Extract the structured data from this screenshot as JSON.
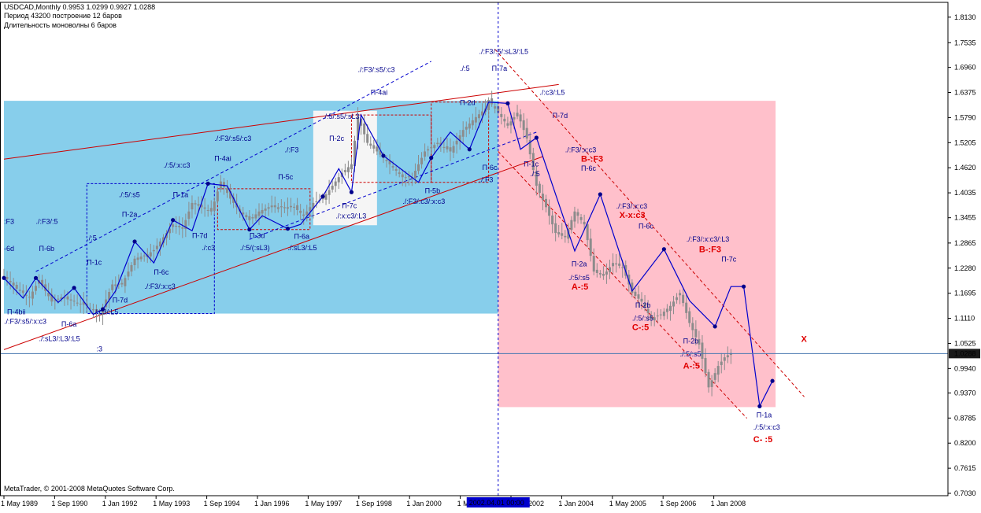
{
  "header": {
    "line1": "USDCAD,Monthly  0.9953 1.0299 0.9927 1.0288",
    "line2": "Период  43200  построение      12 баров",
    "line3": "Длительность моноволны  6  баров"
  },
  "footer": {
    "copyright": "MetaTrader, © 2001-2008 MetaQuotes Software Corp."
  },
  "colors": {
    "bg": "#ffffff",
    "zone_blue": "#87ceeb",
    "zone_pink": "#ffc0cb",
    "zone_white": "#f5f5f5",
    "candle": "#8c8c8c",
    "zigzag": "#0000cd",
    "channel_red": "#cc0000",
    "channel_blue": "#0000cd",
    "label": "#00008b",
    "label_red": "#e00000"
  },
  "chart_data": {
    "type": "candlestick",
    "symbol": "USDCAD",
    "timeframe": "Monthly",
    "ylim": [
      0.703,
      1.82
    ],
    "y_ticks": [
      "1.8130",
      "1.7535",
      "1.6960",
      "1.6375",
      "1.5790",
      "1.5205",
      "1.4620",
      "1.4035",
      "1.3455",
      "1.2865",
      "1.2280",
      "1.1695",
      "1.1110",
      "1.0525",
      "0.9940",
      "0.9370",
      "0.8785",
      "0.8200",
      "0.7615",
      "0.7030"
    ],
    "x_ticks": [
      "1 May 1989",
      "1 Sep 1990",
      "1 Jan 1992",
      "1 May 1993",
      "1 Sep 1994",
      "1 Jan 1996",
      "1 May 1997",
      "1 Sep 1998",
      "1 Jan 2000",
      "1 May 2001",
      "1 Sep 2002",
      "1 Jan 2004",
      "1 May 2005",
      "1 Sep 2006",
      "1 Jan 2008"
    ],
    "current_price": "1.0288",
    "cursor_date": "2002.04.01 00:00",
    "close_path": [
      [
        "1989-05",
        1.21
      ],
      [
        "1989-09",
        1.18
      ],
      [
        "1990-01",
        1.16
      ],
      [
        "1990-04",
        1.2
      ],
      [
        "1990-08",
        1.15
      ],
      [
        "1990-11",
        1.16
      ],
      [
        "1991-03",
        1.15
      ],
      [
        "1991-07",
        1.14
      ],
      [
        "1991-11",
        1.12
      ],
      [
        "1992-03",
        1.19
      ],
      [
        "1992-06",
        1.19
      ],
      [
        "1992-10",
        1.25
      ],
      [
        "1993-02",
        1.26
      ],
      [
        "1993-04",
        1.27
      ],
      [
        "1993-07",
        1.3
      ],
      [
        "1993-10",
        1.33
      ],
      [
        "1994-01",
        1.32
      ],
      [
        "1994-04",
        1.38
      ],
      [
        "1994-07",
        1.37
      ],
      [
        "1994-10",
        1.36
      ],
      [
        "1995-01",
        1.43
      ],
      [
        "1995-04",
        1.39
      ],
      [
        "1995-07",
        1.36
      ],
      [
        "1995-10",
        1.34
      ],
      [
        "1996-01",
        1.36
      ],
      [
        "1996-04",
        1.37
      ],
      [
        "1996-08",
        1.37
      ],
      [
        "1996-12",
        1.37
      ],
      [
        "1997-03",
        1.35
      ],
      [
        "1997-06",
        1.38
      ],
      [
        "1997-09",
        1.39
      ],
      [
        "1997-12",
        1.42
      ],
      [
        "1998-03",
        1.45
      ],
      [
        "1998-06",
        1.47
      ],
      [
        "1998-08",
        1.58
      ],
      [
        "1998-11",
        1.52
      ],
      [
        "1999-02",
        1.5
      ],
      [
        "1999-06",
        1.47
      ],
      [
        "1999-10",
        1.44
      ],
      [
        "2000-01",
        1.44
      ],
      [
        "2000-05",
        1.5
      ],
      [
        "2000-09",
        1.52
      ],
      [
        "2001-01",
        1.5
      ],
      [
        "2001-05",
        1.55
      ],
      [
        "2001-09",
        1.58
      ],
      [
        "2001-12",
        1.6
      ],
      [
        "2002-01",
        1.62
      ],
      [
        "2002-04",
        1.59
      ],
      [
        "2002-07",
        1.56
      ],
      [
        "2002-10",
        1.59
      ],
      [
        "2003-01",
        1.53
      ],
      [
        "2003-04",
        1.42
      ],
      [
        "2003-07",
        1.37
      ],
      [
        "2003-10",
        1.31
      ],
      [
        "2004-01",
        1.3
      ],
      [
        "2004-04",
        1.36
      ],
      [
        "2004-07",
        1.33
      ],
      [
        "2004-10",
        1.22
      ],
      [
        "2005-01",
        1.21
      ],
      [
        "2005-04",
        1.24
      ],
      [
        "2005-07",
        1.23
      ],
      [
        "2005-10",
        1.17
      ],
      [
        "2006-01",
        1.15
      ],
      [
        "2006-04",
        1.11
      ],
      [
        "2006-07",
        1.12
      ],
      [
        "2006-10",
        1.14
      ],
      [
        "2007-01",
        1.17
      ],
      [
        "2007-04",
        1.1
      ],
      [
        "2007-07",
        1.05
      ],
      [
        "2007-10",
        0.95
      ],
      [
        "2008-01",
        1.0
      ],
      [
        "2008-03",
        1.02
      ],
      [
        "2008-05",
        1.03
      ]
    ],
    "zigzag": [
      [
        "1989-05",
        1.205
      ],
      [
        "1989-11",
        1.158
      ],
      [
        "1990-03",
        1.205
      ],
      [
        "1990-10",
        1.148
      ],
      [
        "1991-03",
        1.182
      ],
      [
        "1991-09",
        1.12
      ],
      [
        "1991-12",
        1.132
      ],
      [
        "1992-04",
        1.175
      ],
      [
        "1992-10",
        1.29
      ],
      [
        "1993-04",
        1.24
      ],
      [
        "1993-10",
        1.34
      ],
      [
        "1994-04",
        1.315
      ],
      [
        "1994-09",
        1.425
      ],
      [
        "1995-03",
        1.42
      ],
      [
        "1995-10",
        1.318
      ],
      [
        "1996-02",
        1.35
      ],
      [
        "1996-10",
        1.32
      ],
      [
        "1997-02",
        1.33
      ],
      [
        "1997-09",
        1.395
      ],
      [
        "1998-02",
        1.46
      ],
      [
        "1998-06",
        1.405
      ],
      [
        "1998-09",
        1.585
      ],
      [
        "1999-04",
        1.49
      ],
      [
        "2000-03",
        1.428
      ],
      [
        "2000-07",
        1.485
      ],
      [
        "2001-01",
        1.545
      ],
      [
        "2001-07",
        1.505
      ],
      [
        "2002-01",
        1.615
      ],
      [
        "2002-07",
        1.612
      ],
      [
        "2002-11",
        1.505
      ],
      [
        "2003-04",
        1.532
      ],
      [
        "2004-04",
        1.268
      ],
      [
        "2004-12",
        1.4
      ],
      [
        "2005-10",
        1.175
      ],
      [
        "2006-08",
        1.272
      ],
      [
        "2007-04",
        1.152
      ],
      [
        "2007-12",
        1.092
      ],
      [
        "2008-05",
        1.185
      ],
      [
        "2008-09",
        1.185
      ],
      [
        "2009-02",
        0.906
      ],
      [
        "2009-06",
        0.965
      ]
    ],
    "zones": [
      {
        "name": "blue-zone",
        "x0": "1989-05",
        "x1": "2002-04",
        "y0": 1.122,
        "y1": 1.618
      },
      {
        "name": "white-zone",
        "x0": "1997-06",
        "x1": "1999-02",
        "y0": 1.328,
        "y1": 1.595
      },
      {
        "name": "pink-zone",
        "x0": "2002-04",
        "x1": "2009-07",
        "y0": 0.904,
        "y1": 1.618
      }
    ],
    "dashed_boxes": [
      {
        "x0": "1991-07",
        "x1": "1994-11",
        "y0": 1.122,
        "y1": 1.425
      },
      {
        "x0": "1994-12",
        "x1": "1997-05",
        "y0": 1.318,
        "y1": 1.413
      },
      {
        "x0": "1998-06",
        "x1": "2000-07",
        "y0": 1.428,
        "y1": 1.585
      },
      {
        "x0": "2000-07",
        "x1": "2002-01",
        "y0": 1.428,
        "y1": 1.615
      }
    ],
    "lines": [
      {
        "name": "red-channel-top",
        "style": "solid",
        "color": "channel_red",
        "p0": [
          "1989-05",
          1.482
        ],
        "p1": [
          "2003-11",
          1.656
        ]
      },
      {
        "name": "red-channel-bottom",
        "style": "solid",
        "color": "channel_red",
        "p0": [
          "1989-05",
          1.038
        ],
        "p1": [
          "2003-06",
          1.488
        ]
      },
      {
        "name": "blue-channel-top",
        "style": "dashed",
        "color": "channel_blue",
        "p0": [
          "1990-03",
          1.22
        ],
        "p1": [
          "2000-07",
          1.71
        ]
      },
      {
        "name": "blue-channel-bottom",
        "style": "dashed",
        "color": "channel_blue",
        "p0": [
          "1995-10",
          1.295
        ],
        "p1": [
          "2003-04",
          1.545
        ]
      },
      {
        "name": "red-down-channel-top",
        "style": "dashed",
        "color": "channel_red",
        "p0": [
          "2002-03",
          1.738
        ],
        "p1": [
          "2010-04",
          0.928
        ]
      },
      {
        "name": "red-down-channel-bottom",
        "style": "dashed",
        "color": "channel_red",
        "p0": [
          "2002-04",
          1.5
        ],
        "p1": [
          "2008-10",
          0.878
        ]
      }
    ],
    "labels": [
      {
        "text": ":F3",
        "at": [
          "1989-05",
          1.331
        ],
        "style": "blue"
      },
      {
        "text": "./:F3/:5",
        "at": [
          "1990-03",
          1.331
        ],
        "style": "blue"
      },
      {
        "text": "-6d",
        "at": [
          "1989-05",
          1.268
        ],
        "style": "blue"
      },
      {
        "text": "П-6b",
        "at": [
          "1990-04",
          1.268
        ],
        "style": "blue"
      },
      {
        "text": "П-4bii",
        "at": [
          "1989-06",
          1.12
        ],
        "style": "blue"
      },
      {
        "text": "./:F3/:s5/:x:c3",
        "at": [
          "1989-05",
          1.098
        ],
        "style": "blue"
      },
      {
        "text": "П-6a",
        "at": [
          "1990-11",
          1.092
        ],
        "style": "blue"
      },
      {
        "text": "./:sL3/:L3/:L5",
        "at": [
          "1990-04",
          1.058
        ],
        "style": "blue"
      },
      {
        "text": ":3",
        "at": [
          "1991-10",
          1.034
        ],
        "style": "red-small"
      },
      {
        "text": "./:5",
        "at": [
          "1991-07",
          1.293
        ],
        "style": "blue"
      },
      {
        "text": "П-1c",
        "at": [
          "1991-07",
          1.236
        ],
        "style": "blue"
      },
      {
        "text": "П-7d",
        "at": [
          "1992-03",
          1.148
        ],
        "style": "blue"
      },
      {
        "text": "./:c3/:L5",
        "at": [
          "1991-09",
          1.12
        ],
        "style": "blue"
      },
      {
        "text": "./:5/:s5",
        "at": [
          "1992-05",
          1.394
        ],
        "style": "blue"
      },
      {
        "text": "П-2a",
        "at": [
          "1992-06",
          1.348
        ],
        "style": "blue"
      },
      {
        "text": "./:5/:x:c3",
        "at": [
          "1993-07",
          1.462
        ],
        "style": "blue"
      },
      {
        "text": "П-1a",
        "at": [
          "1993-10",
          1.394
        ],
        "style": "blue"
      },
      {
        "text": "П-4ai",
        "at": [
          "1994-11",
          1.478
        ],
        "style": "blue"
      },
      {
        "text": "П-7d",
        "at": [
          "1994-04",
          1.298
        ],
        "style": "blue"
      },
      {
        "text": "./:c3",
        "at": [
          "1994-07",
          1.27
        ],
        "style": "blue"
      },
      {
        "text": "П-6c",
        "at": [
          "1993-04",
          1.213
        ],
        "style": "blue"
      },
      {
        "text": "./:F3/:x:c3",
        "at": [
          "1993-01",
          1.18
        ],
        "style": "blue"
      },
      {
        "text": "./:F3/:s5/:c3",
        "at": [
          "1994-11",
          1.525
        ],
        "style": "blue"
      },
      {
        "text": "./:F3",
        "at": [
          "1996-09",
          1.498
        ],
        "style": "blue"
      },
      {
        "text": "П-5c",
        "at": [
          "1996-07",
          1.435
        ],
        "style": "blue"
      },
      {
        "text": "П-3d",
        "at": [
          "1995-10",
          1.298
        ],
        "style": "blue"
      },
      {
        "text": "./:5/(:sL3)",
        "at": [
          "1995-07",
          1.27
        ],
        "style": "blue"
      },
      {
        "text": "П-6a",
        "at": [
          "1996-12",
          1.296
        ],
        "style": "blue"
      },
      {
        "text": "./:sL3/:L5",
        "at": [
          "1996-10",
          1.27
        ],
        "style": "blue"
      },
      {
        "text": "./:5/:s5/:sL3",
        "at": [
          "1997-09",
          1.576
        ],
        "style": "blue"
      },
      {
        "text": "П-2c",
        "at": [
          "1997-11",
          1.525
        ],
        "style": "blue"
      },
      {
        "text": "П-7c",
        "at": [
          "1998-03",
          1.368
        ],
        "style": "blue"
      },
      {
        "text": "./:x:c3/:L3",
        "at": [
          "1998-01",
          1.344
        ],
        "style": "blue"
      },
      {
        "text": "./:F3/:s5/:c3",
        "at": [
          "1998-08",
          1.685
        ],
        "style": "blue"
      },
      {
        "text": "П-4ai",
        "at": [
          "1998-12",
          1.632
        ],
        "style": "blue"
      },
      {
        "text": "./:5",
        "at": [
          "2001-04",
          1.688
        ],
        "style": "blue"
      },
      {
        "text": "./:F3/:5/:sL3/:L5",
        "at": [
          "2001-10",
          1.727
        ],
        "style": "blue"
      },
      {
        "text": "П-7a",
        "at": [
          "2002-02",
          1.688
        ],
        "style": "blue"
      },
      {
        "text": "П-2d",
        "at": [
          "2001-04",
          1.608
        ],
        "style": "blue"
      },
      {
        "text": "П-6c",
        "at": [
          "2001-11",
          1.457
        ],
        "style": "blue"
      },
      {
        "text": "./:F3",
        "at": [
          "2001-10",
          1.428
        ],
        "style": "blue"
      },
      {
        "text": "П-5b",
        "at": [
          "2000-05",
          1.403
        ],
        "style": "blue"
      },
      {
        "text": "./:F3/:c3/:x:c3",
        "at": [
          "1999-10",
          1.378
        ],
        "style": "blue"
      },
      {
        "text": "./:c3/:L5",
        "at": [
          "2003-05",
          1.632
        ],
        "style": "blue"
      },
      {
        "text": "П-7d",
        "at": [
          "2003-09",
          1.578
        ],
        "style": "blue"
      },
      {
        "text": "./:F3/:x:c3",
        "at": [
          "2004-01",
          1.498
        ],
        "style": "blue"
      },
      {
        "text": "B-:F3",
        "at": [
          "2004-06",
          1.476
        ],
        "style": "red"
      },
      {
        "text": "П-1c",
        "at": [
          "2002-12",
          1.465
        ],
        "style": "blue"
      },
      {
        "text": "./:5",
        "at": [
          "2003-02",
          1.442
        ],
        "style": "blue"
      },
      {
        "text": "П-6c",
        "at": [
          "2004-06",
          1.455
        ],
        "style": "blue"
      },
      {
        "text": "./:F3/:x:c3",
        "at": [
          "2005-05",
          1.367
        ],
        "style": "blue"
      },
      {
        "text": "X-x:c3",
        "at": [
          "2005-06",
          1.345
        ],
        "style": "red"
      },
      {
        "text": "П-6c",
        "at": [
          "2005-12",
          1.32
        ],
        "style": "blue"
      },
      {
        "text": "./:F3/:x:c3/:L3",
        "at": [
          "2007-03",
          1.29
        ],
        "style": "blue"
      },
      {
        "text": "B-:F3",
        "at": [
          "2007-07",
          1.265
        ],
        "style": "red"
      },
      {
        "text": "П-7c",
        "at": [
          "2008-02",
          1.243
        ],
        "style": "blue"
      },
      {
        "text": "П-2a",
        "at": [
          "2004-03",
          1.232
        ],
        "style": "blue"
      },
      {
        "text": "./:5/:s5",
        "at": [
          "2004-02",
          1.2
        ],
        "style": "blue"
      },
      {
        "text": "A-:5",
        "at": [
          "2004-03",
          1.178
        ],
        "style": "red"
      },
      {
        "text": "П-2b",
        "at": [
          "2005-11",
          1.136
        ],
        "style": "blue"
      },
      {
        "text": "./:5/:s5",
        "at": [
          "2005-10",
          1.106
        ],
        "style": "blue"
      },
      {
        "text": "C-:5",
        "at": [
          "2005-10",
          1.084
        ],
        "style": "red"
      },
      {
        "text": "П-2b",
        "at": [
          "2007-02",
          1.052
        ],
        "style": "blue"
      },
      {
        "text": "./:5/:s5",
        "at": [
          "2007-01",
          1.022
        ],
        "style": "blue"
      },
      {
        "text": "A-:5",
        "at": [
          "2007-02",
          0.994
        ],
        "style": "red"
      },
      {
        "text": "X",
        "at": [
          "2010-03",
          1.056
        ],
        "style": "red"
      },
      {
        "text": "П-1a",
        "at": [
          "2009-01",
          0.88
        ],
        "style": "blue"
      },
      {
        "text": "./:5/:x:c3",
        "at": [
          "2008-12",
          0.852
        ],
        "style": "blue"
      },
      {
        "text": "C- :5",
        "at": [
          "2008-12",
          0.822
        ],
        "style": "red"
      }
    ]
  }
}
